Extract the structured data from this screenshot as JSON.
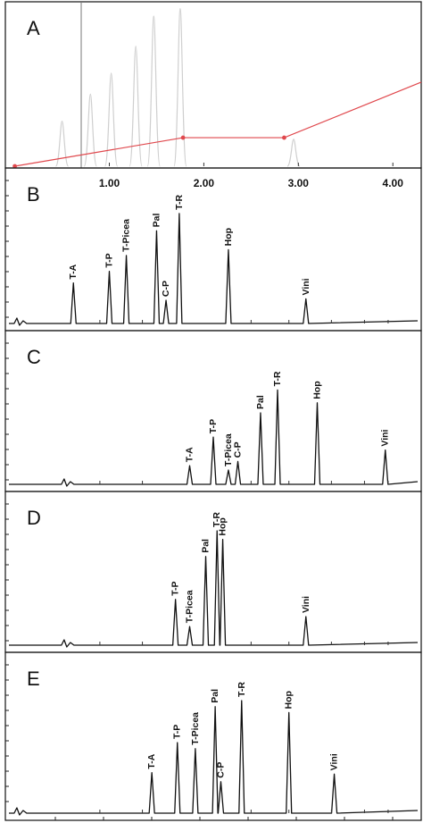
{
  "chart_data": [
    {
      "type": "line",
      "panel": "A",
      "x_ticks": [
        "1.00",
        "2.00",
        "3.00",
        "4.00"
      ],
      "xlim": [
        -0.1,
        4.3
      ],
      "gradient": {
        "color": "#e0484d",
        "points": [
          {
            "x": 0.0,
            "y": 0.0
          },
          {
            "x": 1.78,
            "y": 0.19
          },
          {
            "x": 2.85,
            "y": 0.19
          },
          {
            "x": 4.3,
            "y": 0.56
          }
        ]
      },
      "ghost_peaks": {
        "color": "#cfcfcf",
        "x": [
          0.5,
          0.8,
          1.02,
          1.28,
          1.47,
          1.75,
          2.95
        ],
        "y": [
          0.3,
          0.48,
          0.62,
          0.8,
          1.0,
          1.05,
          0.18
        ]
      }
    },
    {
      "type": "line",
      "panel": "B",
      "xlim": [
        -0.1,
        4.3
      ],
      "peaks": [
        {
          "name": "T-A",
          "x": 0.62,
          "height": 0.28
        },
        {
          "name": "T-P",
          "x": 1.0,
          "height": 0.36
        },
        {
          "name": "T-Picea",
          "x": 1.18,
          "height": 0.47
        },
        {
          "name": "Pal",
          "x": 1.5,
          "height": 0.64
        },
        {
          "name": "C-P",
          "x": 1.6,
          "height": 0.16
        },
        {
          "name": "T-R",
          "x": 1.74,
          "height": 0.76
        },
        {
          "name": "Hop",
          "x": 2.26,
          "height": 0.51
        },
        {
          "name": "Vini",
          "x": 3.08,
          "height": 0.17
        }
      ]
    },
    {
      "type": "line",
      "panel": "C",
      "xlim": [
        -0.1,
        4.3
      ],
      "peaks": [
        {
          "name": "T-A",
          "x": 1.85,
          "height": 0.13
        },
        {
          "name": "T-P",
          "x": 2.1,
          "height": 0.33
        },
        {
          "name": "T-Picea",
          "x": 2.26,
          "height": 0.1
        },
        {
          "name": "C-P",
          "x": 2.36,
          "height": 0.16
        },
        {
          "name": "Pal",
          "x": 2.6,
          "height": 0.5
        },
        {
          "name": "T-R",
          "x": 2.78,
          "height": 0.66
        },
        {
          "name": "Hop",
          "x": 3.2,
          "height": 0.57
        },
        {
          "name": "Vini",
          "x": 3.92,
          "height": 0.24
        }
      ]
    },
    {
      "type": "line",
      "panel": "D",
      "xlim": [
        -0.1,
        4.3
      ],
      "peaks": [
        {
          "name": "T-P",
          "x": 1.7,
          "height": 0.32
        },
        {
          "name": "T-Picea",
          "x": 1.85,
          "height": 0.13
        },
        {
          "name": "Pal",
          "x": 2.02,
          "height": 0.62
        },
        {
          "name": "T-R",
          "x": 2.14,
          "height": 0.8
        },
        {
          "name": "Hop",
          "x": 2.2,
          "height": 0.74
        },
        {
          "name": "Vini",
          "x": 3.08,
          "height": 0.2
        }
      ]
    },
    {
      "type": "line",
      "panel": "E",
      "xlim": [
        -0.1,
        4.3
      ],
      "peaks": [
        {
          "name": "T-A",
          "x": 1.45,
          "height": 0.27
        },
        {
          "name": "T-P",
          "x": 1.72,
          "height": 0.47
        },
        {
          "name": "T-Picea",
          "x": 1.91,
          "height": 0.43
        },
        {
          "name": "Pal",
          "x": 2.12,
          "height": 0.71
        },
        {
          "name": "C-P",
          "x": 2.18,
          "height": 0.21
        },
        {
          "name": "T-R",
          "x": 2.4,
          "height": 0.75
        },
        {
          "name": "Hop",
          "x": 2.9,
          "height": 0.67
        },
        {
          "name": "Vini",
          "x": 3.38,
          "height": 0.26
        }
      ]
    }
  ]
}
